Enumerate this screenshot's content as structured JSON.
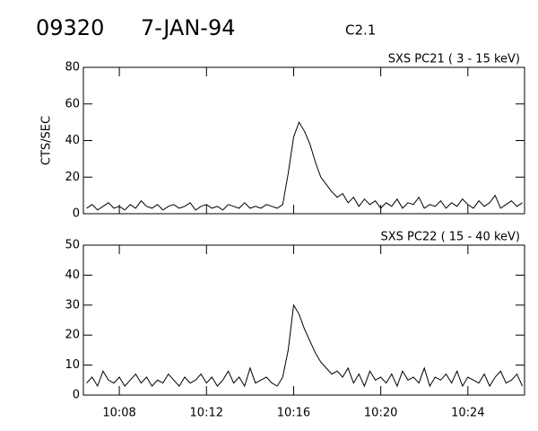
{
  "header": {
    "id": "09320",
    "date": "7-JAN-94",
    "class": "C2.1"
  },
  "chart_data": [
    {
      "type": "line",
      "title": "SXS PC21  (  3 - 15 keV)",
      "y_label": "CTS/SEC",
      "color": "#000000",
      "xlim": [
        606.35,
        626.6
      ],
      "ylim": [
        0,
        80
      ],
      "yticks": [
        0,
        20,
        40,
        60,
        80
      ],
      "x": [
        606.5,
        606.75,
        607,
        607.25,
        607.5,
        607.75,
        608,
        608.25,
        608.5,
        608.75,
        609,
        609.25,
        609.5,
        609.75,
        610,
        610.25,
        610.5,
        610.75,
        611,
        611.25,
        611.5,
        611.75,
        612,
        612.25,
        612.5,
        612.75,
        613,
        613.25,
        613.5,
        613.75,
        614,
        614.25,
        614.5,
        614.75,
        615,
        615.25,
        615.5,
        615.75,
        616,
        616.25,
        616.5,
        616.75,
        617,
        617.25,
        617.5,
        617.75,
        618,
        618.25,
        618.5,
        618.75,
        619,
        619.25,
        619.5,
        619.75,
        620,
        620.25,
        620.5,
        620.75,
        621,
        621.25,
        621.5,
        621.75,
        622,
        622.25,
        622.5,
        622.75,
        623,
        623.25,
        623.5,
        623.75,
        624,
        624.25,
        624.5,
        624.75,
        625,
        625.25,
        625.5,
        625.75,
        626,
        626.25,
        626.5
      ],
      "values": [
        3,
        5,
        2,
        4,
        6,
        3,
        4,
        2,
        5,
        3,
        7,
        4,
        3,
        5,
        2,
        4,
        5,
        3,
        4,
        6,
        2,
        4,
        5,
        3,
        4,
        2,
        5,
        4,
        3,
        6,
        3,
        4,
        3,
        5,
        4,
        3,
        5,
        22,
        42,
        50,
        45,
        38,
        28,
        20,
        16,
        12,
        9,
        11,
        6,
        9,
        4,
        8,
        5,
        7,
        3,
        6,
        4,
        8,
        3,
        6,
        5,
        9,
        3,
        5,
        4,
        7,
        3,
        6,
        4,
        8,
        5,
        3,
        7,
        4,
        6,
        10,
        3,
        5,
        7,
        4,
        6
      ]
    },
    {
      "type": "line",
      "title": "SXS PC22  ( 15 - 40 keV)",
      "color": "#000000",
      "xlim": [
        606.35,
        626.6
      ],
      "ylim": [
        0,
        50
      ],
      "yticks": [
        0,
        10,
        20,
        30,
        40,
        50
      ],
      "xticks": [
        {
          "value": 608,
          "label": "10:08"
        },
        {
          "value": 612,
          "label": "10:12"
        },
        {
          "value": 616,
          "label": "10:16"
        },
        {
          "value": 620,
          "label": "10:20"
        },
        {
          "value": 624,
          "label": "10:24"
        }
      ],
      "x": [
        606.5,
        606.75,
        607,
        607.25,
        607.5,
        607.75,
        608,
        608.25,
        608.5,
        608.75,
        609,
        609.25,
        609.5,
        609.75,
        610,
        610.25,
        610.5,
        610.75,
        611,
        611.25,
        611.5,
        611.75,
        612,
        612.25,
        612.5,
        612.75,
        613,
        613.25,
        613.5,
        613.75,
        614,
        614.25,
        614.5,
        614.75,
        615,
        615.25,
        615.5,
        615.75,
        616,
        616.25,
        616.5,
        616.75,
        617,
        617.25,
        617.5,
        617.75,
        618,
        618.25,
        618.5,
        618.75,
        619,
        619.25,
        619.5,
        619.75,
        620,
        620.25,
        620.5,
        620.75,
        621,
        621.25,
        621.5,
        621.75,
        622,
        622.25,
        622.5,
        622.75,
        623,
        623.25,
        623.5,
        623.75,
        624,
        624.25,
        624.5,
        624.75,
        625,
        625.25,
        625.5,
        625.75,
        626,
        626.25,
        626.5
      ],
      "values": [
        4,
        6,
        3,
        8,
        5,
        4,
        6,
        3,
        5,
        7,
        4,
        6,
        3,
        5,
        4,
        7,
        5,
        3,
        6,
        4,
        5,
        7,
        4,
        6,
        3,
        5,
        8,
        4,
        6,
        3,
        9,
        4,
        5,
        6,
        4,
        3,
        6,
        15,
        30,
        27,
        22,
        18,
        14,
        11,
        9,
        7,
        8,
        6,
        9,
        4,
        7,
        3,
        8,
        5,
        6,
        4,
        7,
        3,
        8,
        5,
        6,
        4,
        9,
        3,
        6,
        5,
        7,
        4,
        8,
        3,
        6,
        5,
        4,
        7,
        3,
        6,
        8,
        4,
        5,
        7,
        3
      ]
    }
  ]
}
